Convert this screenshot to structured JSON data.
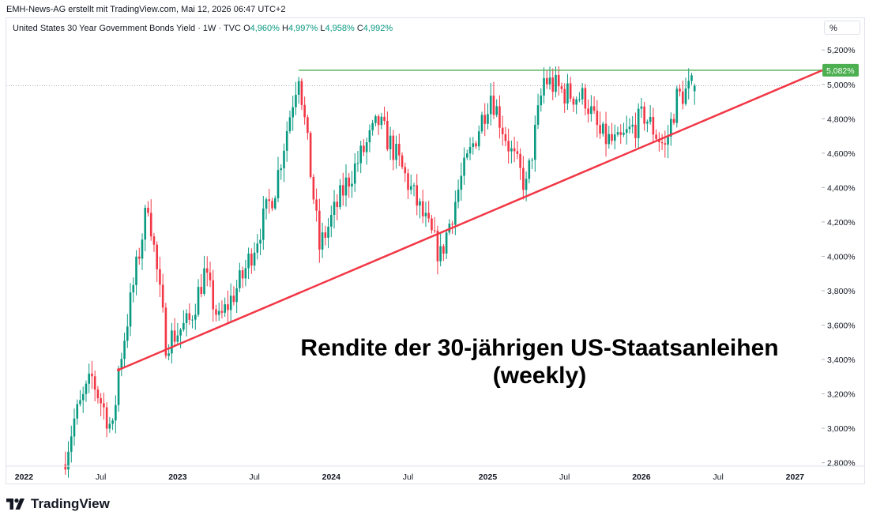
{
  "header": {
    "credit": "EMH-News-AG erstellt mit TradingView.com, Mai 12, 2026 06:47 UTC+2"
  },
  "symbol": {
    "name": "United States 30 Year Government Bonds Yield · 1W · TVC",
    "o_label": "O",
    "o_value": "4,960%",
    "h_label": "H",
    "h_value": "4,997%",
    "l_label": "L",
    "l_value": "4,958%",
    "c_label": "C",
    "c_value": "4,992%"
  },
  "unit_label": "%",
  "brand": {
    "name": "TradingView"
  },
  "colors": {
    "up": "#089981",
    "down": "#f23645",
    "trendline": "#f23645",
    "resistance": "#4caf50"
  },
  "chart_data": {
    "type": "candlestick",
    "title": "Rendite der 30-jährigen US-Staatsanleihen (weekly)",
    "annotation_lines": [
      "Rendite der 30-jährigen US-Staatsanleihen",
      "(weekly)"
    ],
    "xlabel": "",
    "ylabel": "",
    "ylim": [
      2.78,
      5.27
    ],
    "x_range": [
      "2021-11-22",
      "2027-03-08"
    ],
    "y_ticks": [
      2.8,
      3.0,
      3.2,
      3.4,
      3.6,
      3.8,
      4.0,
      4.2,
      4.4,
      4.6,
      4.8,
      5.0,
      5.2
    ],
    "y_tick_labels": [
      "2,800%",
      "3,000%",
      "3,200%",
      "3,400%",
      "3,600%",
      "3,800%",
      "4,000%",
      "4,200%",
      "4,400%",
      "4,600%",
      "4,800%",
      "5,000%",
      "5,200%"
    ],
    "x_ticks": [
      {
        "label": "2022",
        "date": "2022-01-03",
        "bold": true
      },
      {
        "label": "Jul",
        "date": "2022-07-04",
        "bold": false
      },
      {
        "label": "2023",
        "date": "2023-01-02",
        "bold": true
      },
      {
        "label": "Jul",
        "date": "2023-07-03",
        "bold": false
      },
      {
        "label": "2024",
        "date": "2024-01-01",
        "bold": true
      },
      {
        "label": "Jul",
        "date": "2024-07-01",
        "bold": false
      },
      {
        "label": "2025",
        "date": "2025-01-06",
        "bold": true
      },
      {
        "label": "Jul",
        "date": "2025-07-07",
        "bold": false
      },
      {
        "label": "2026",
        "date": "2026-01-05",
        "bold": true
      },
      {
        "label": "Jul",
        "date": "2026-07-06",
        "bold": false
      },
      {
        "label": "2027",
        "date": "2027-01-04",
        "bold": true
      }
    ],
    "resistance": {
      "value": 5.082,
      "label": "5,082%",
      "from": "2023-10-16",
      "to": "2027-03-08"
    },
    "trendline": {
      "from": {
        "date": "2022-08-15",
        "value": 3.34
      },
      "to": {
        "date": "2027-03-08",
        "value": 5.08
      }
    },
    "last_close": 4.992,
    "anchors": [
      {
        "date": "2022-04-11",
        "value": 2.84
      },
      {
        "date": "2022-05-02",
        "value": 3.05
      },
      {
        "date": "2022-06-13",
        "value": 3.29
      },
      {
        "date": "2022-08-01",
        "value": 2.98
      },
      {
        "date": "2022-08-15",
        "value": 3.34
      },
      {
        "date": "2022-10-24",
        "value": 4.32
      },
      {
        "date": "2022-12-05",
        "value": 3.5
      },
      {
        "date": "2023-01-30",
        "value": 3.62
      },
      {
        "date": "2023-03-06",
        "value": 3.9
      },
      {
        "date": "2023-04-10",
        "value": 3.62
      },
      {
        "date": "2023-06-05",
        "value": 3.88
      },
      {
        "date": "2023-08-21",
        "value": 4.4
      },
      {
        "date": "2023-10-16",
        "value": 5.08
      },
      {
        "date": "2023-12-04",
        "value": 4.05
      },
      {
        "date": "2024-02-05",
        "value": 4.42
      },
      {
        "date": "2024-04-22",
        "value": 4.78
      },
      {
        "date": "2024-05-27",
        "value": 4.62
      },
      {
        "date": "2024-09-16",
        "value": 4.0
      },
      {
        "date": "2024-11-04",
        "value": 4.45
      },
      {
        "date": "2025-01-13",
        "value": 4.95
      },
      {
        "date": "2025-03-03",
        "value": 4.6
      },
      {
        "date": "2025-04-07",
        "value": 4.4
      },
      {
        "date": "2025-05-19",
        "value": 5.03
      },
      {
        "date": "2025-07-07",
        "value": 4.95
      },
      {
        "date": "2025-08-25",
        "value": 4.92
      },
      {
        "date": "2025-09-29",
        "value": 4.7
      },
      {
        "date": "2025-11-10",
        "value": 4.65
      },
      {
        "date": "2026-01-12",
        "value": 4.82
      },
      {
        "date": "2026-03-02",
        "value": 4.63
      },
      {
        "date": "2026-03-30",
        "value": 4.92
      },
      {
        "date": "2026-05-11",
        "value": 4.992
      }
    ]
  }
}
